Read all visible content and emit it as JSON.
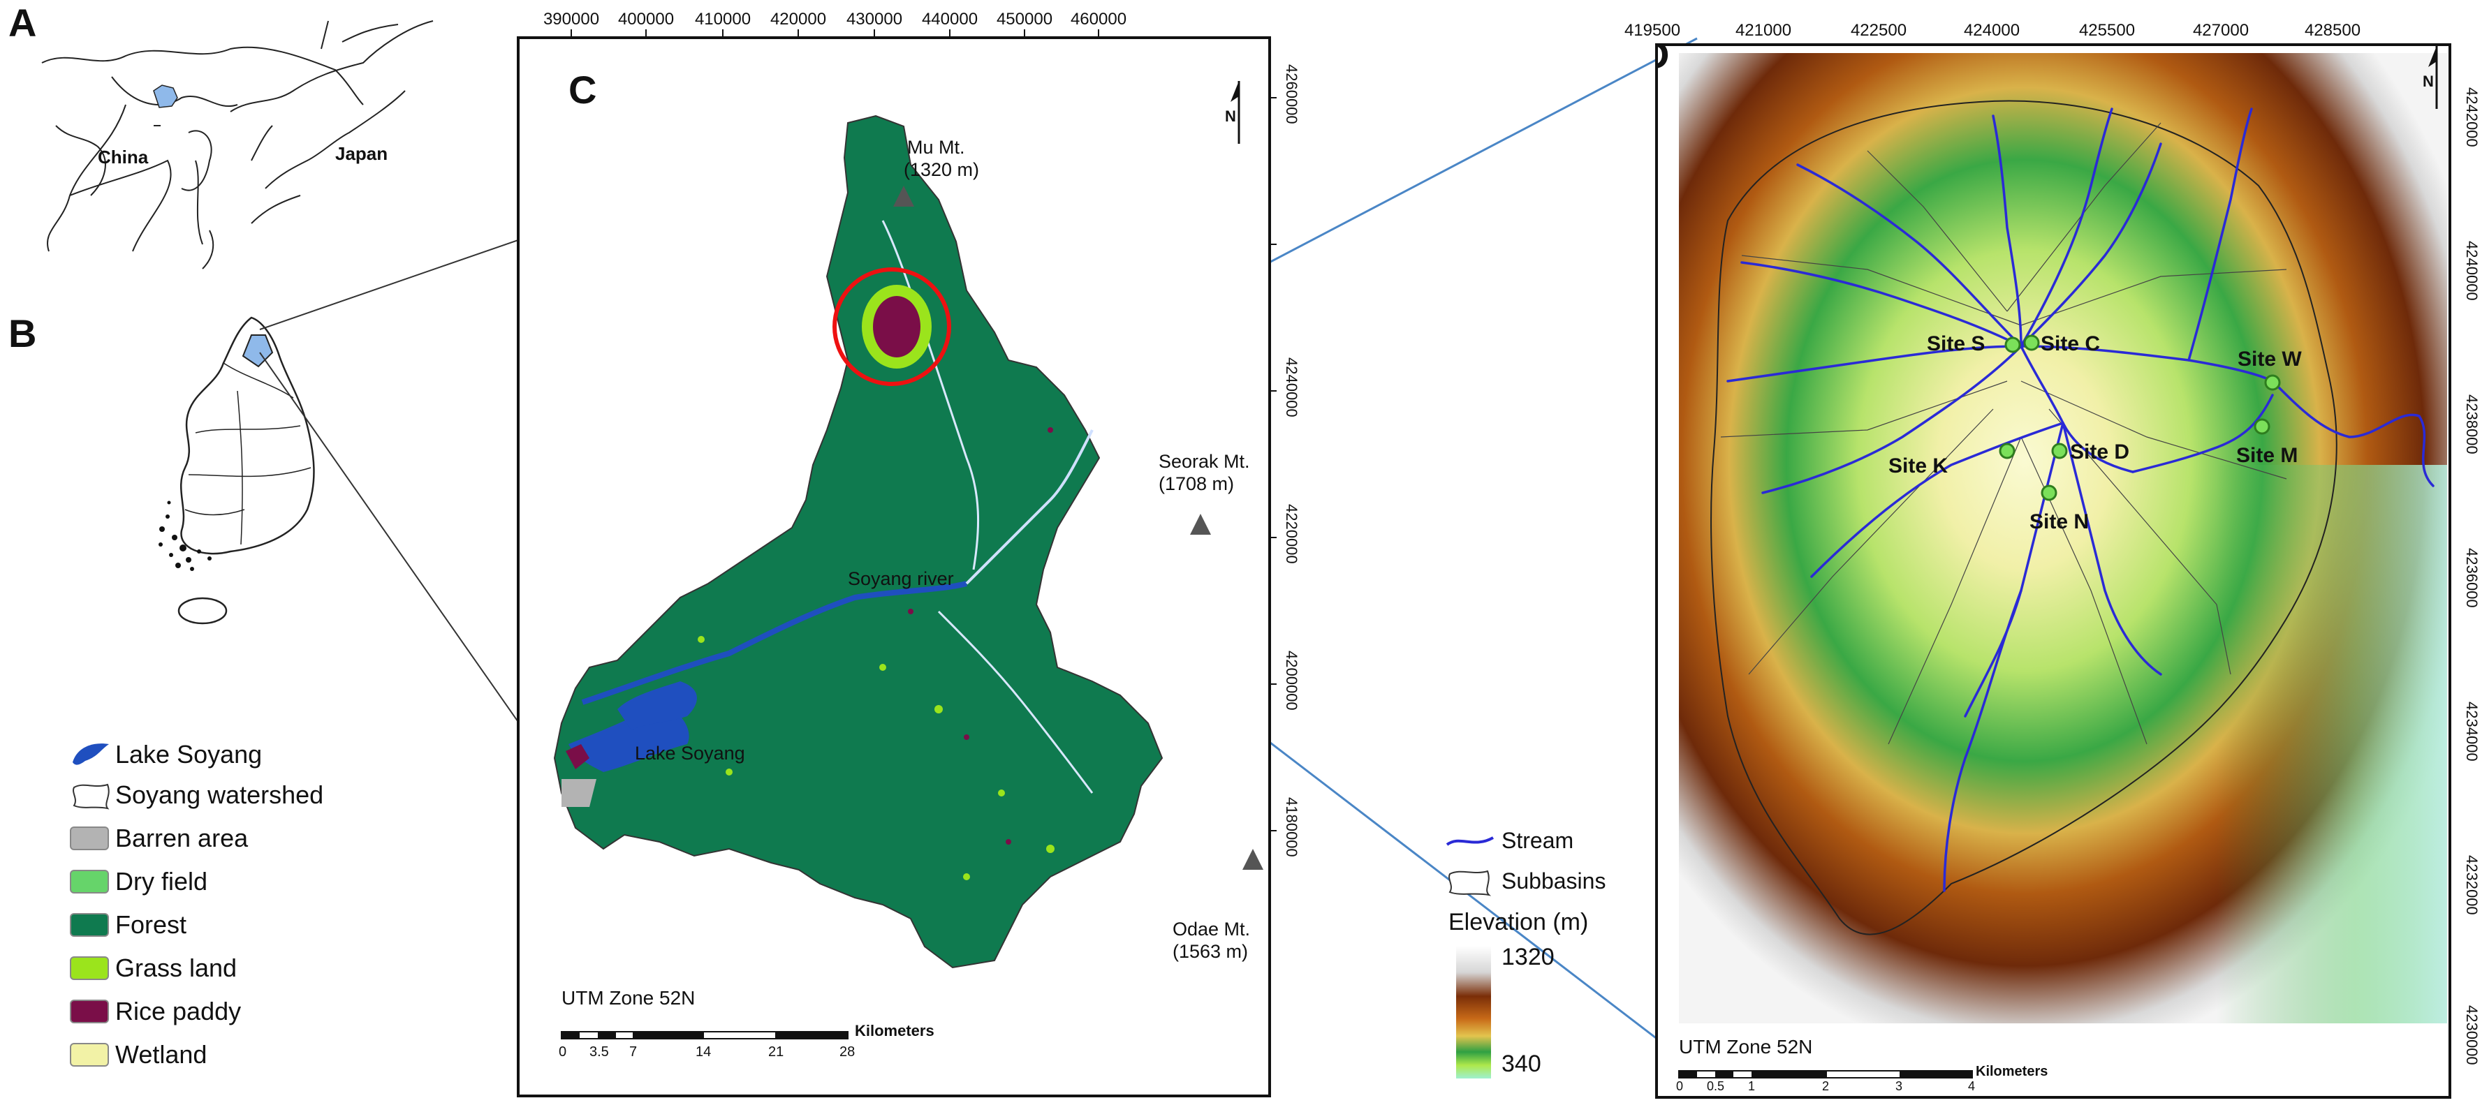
{
  "panels": {
    "a": "A",
    "b": "B",
    "c": "C",
    "d": "D"
  },
  "panel_a": {
    "labels": {
      "china": "China",
      "japan": "Japan"
    }
  },
  "legend_c": [
    {
      "label": "Lake Soyang",
      "color": "#1f4fbf"
    },
    {
      "label": "Soyang watershed",
      "color": "#ffffff"
    },
    {
      "label": "Barren area",
      "color": "#b3b3b3"
    },
    {
      "label": "Dry field",
      "color": "#66d46a"
    },
    {
      "label": "Forest",
      "color": "#0f7a4f"
    },
    {
      "label": "Grass land",
      "color": "#9be41c"
    },
    {
      "label": "Rice paddy",
      "color": "#7a0e48"
    },
    {
      "label": "Wetland",
      "color": "#f2f2a6"
    }
  ],
  "panel_c": {
    "x_ticks": [
      "390000",
      "400000",
      "410000",
      "420000",
      "430000",
      "440000",
      "450000",
      "460000"
    ],
    "y_ticks": [
      "4260000",
      "4240000",
      "4220000",
      "4200000",
      "4180000"
    ],
    "labels": {
      "mu_name": "Mu Mt.",
      "mu_elev": "(1320 m)",
      "seorak_name": "Seorak Mt.",
      "seorak_elev": "(1708 m)",
      "odae_name": "Odae Mt.",
      "odae_elev": "(1563 m)",
      "river": "Soyang river",
      "lake": "Lake Soyang"
    },
    "utm": "UTM Zone 52N",
    "scale_unit": "Kilometers",
    "scale_ticks": [
      "0",
      "3.5",
      "7",
      "14",
      "21",
      "28"
    ]
  },
  "panel_d": {
    "x_ticks": [
      "419500",
      "421000",
      "422500",
      "424000",
      "425500",
      "427000",
      "428500"
    ],
    "y_ticks": [
      "4242000",
      "4240000",
      "4238000",
      "4236000",
      "4234000",
      "4232000",
      "4230000"
    ],
    "sites": [
      "Site S",
      "Site C",
      "Site W",
      "Site M",
      "Site D",
      "Site K",
      "Site N"
    ],
    "utm": "UTM Zone 52N",
    "scale_unit": "Kilometers",
    "scale_ticks": [
      "0",
      "0.5",
      "1",
      "2",
      "3",
      "4"
    ]
  },
  "legend_d": {
    "stream": "Stream",
    "subbasins": "Subbasins",
    "elevation_title": "Elevation (m)",
    "elev_max": "1320",
    "elev_min": "340",
    "colors": {
      "stream": "#2a2ad6",
      "elev_high": "#ffffff",
      "elev_mid": "#7a2e08",
      "elev_low": "#9ff0d0"
    }
  }
}
